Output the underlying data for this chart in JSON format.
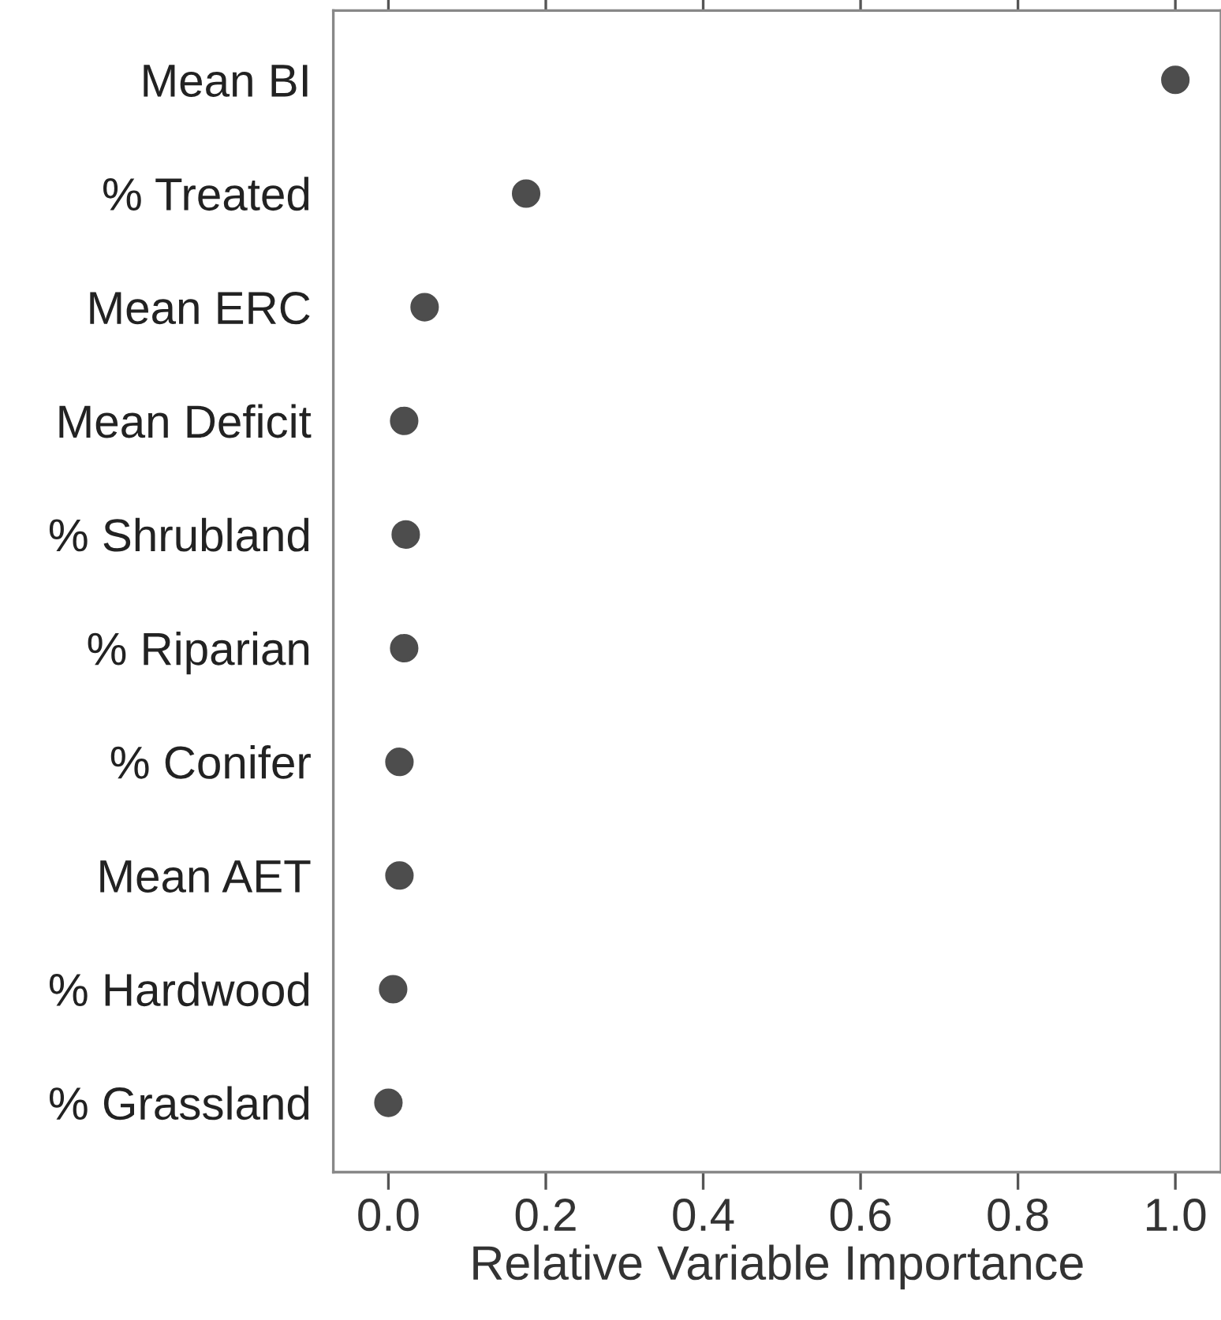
{
  "chart_data": {
    "type": "scatter",
    "orientation": "horizontal",
    "xlabel": "Relative Variable Importance",
    "categories": [
      "Mean BI",
      "% Treated",
      "Mean ERC",
      "Mean Deficit",
      "% Shrubland",
      "% Riparian",
      "% Conifer",
      "Mean AET",
      "% Hardwood",
      "% Grassland"
    ],
    "values": [
      1.0,
      0.175,
      0.046,
      0.02,
      0.022,
      0.02,
      0.014,
      0.014,
      0.006,
      0.0
    ],
    "color": "#4d4d4d",
    "marker": "circle",
    "xlim": [
      -0.07,
      1.058
    ],
    "xticks": [
      {
        "value": 0,
        "label": "0.0"
      },
      {
        "value": 0.2,
        "label": "0.2"
      },
      {
        "value": 0.4,
        "label": "0.4"
      },
      {
        "value": 0.6,
        "label": "0.6"
      },
      {
        "value": 0.8,
        "label": "0.8"
      },
      {
        "value": 1,
        "label": "1.0"
      }
    ],
    "grid": false
  }
}
